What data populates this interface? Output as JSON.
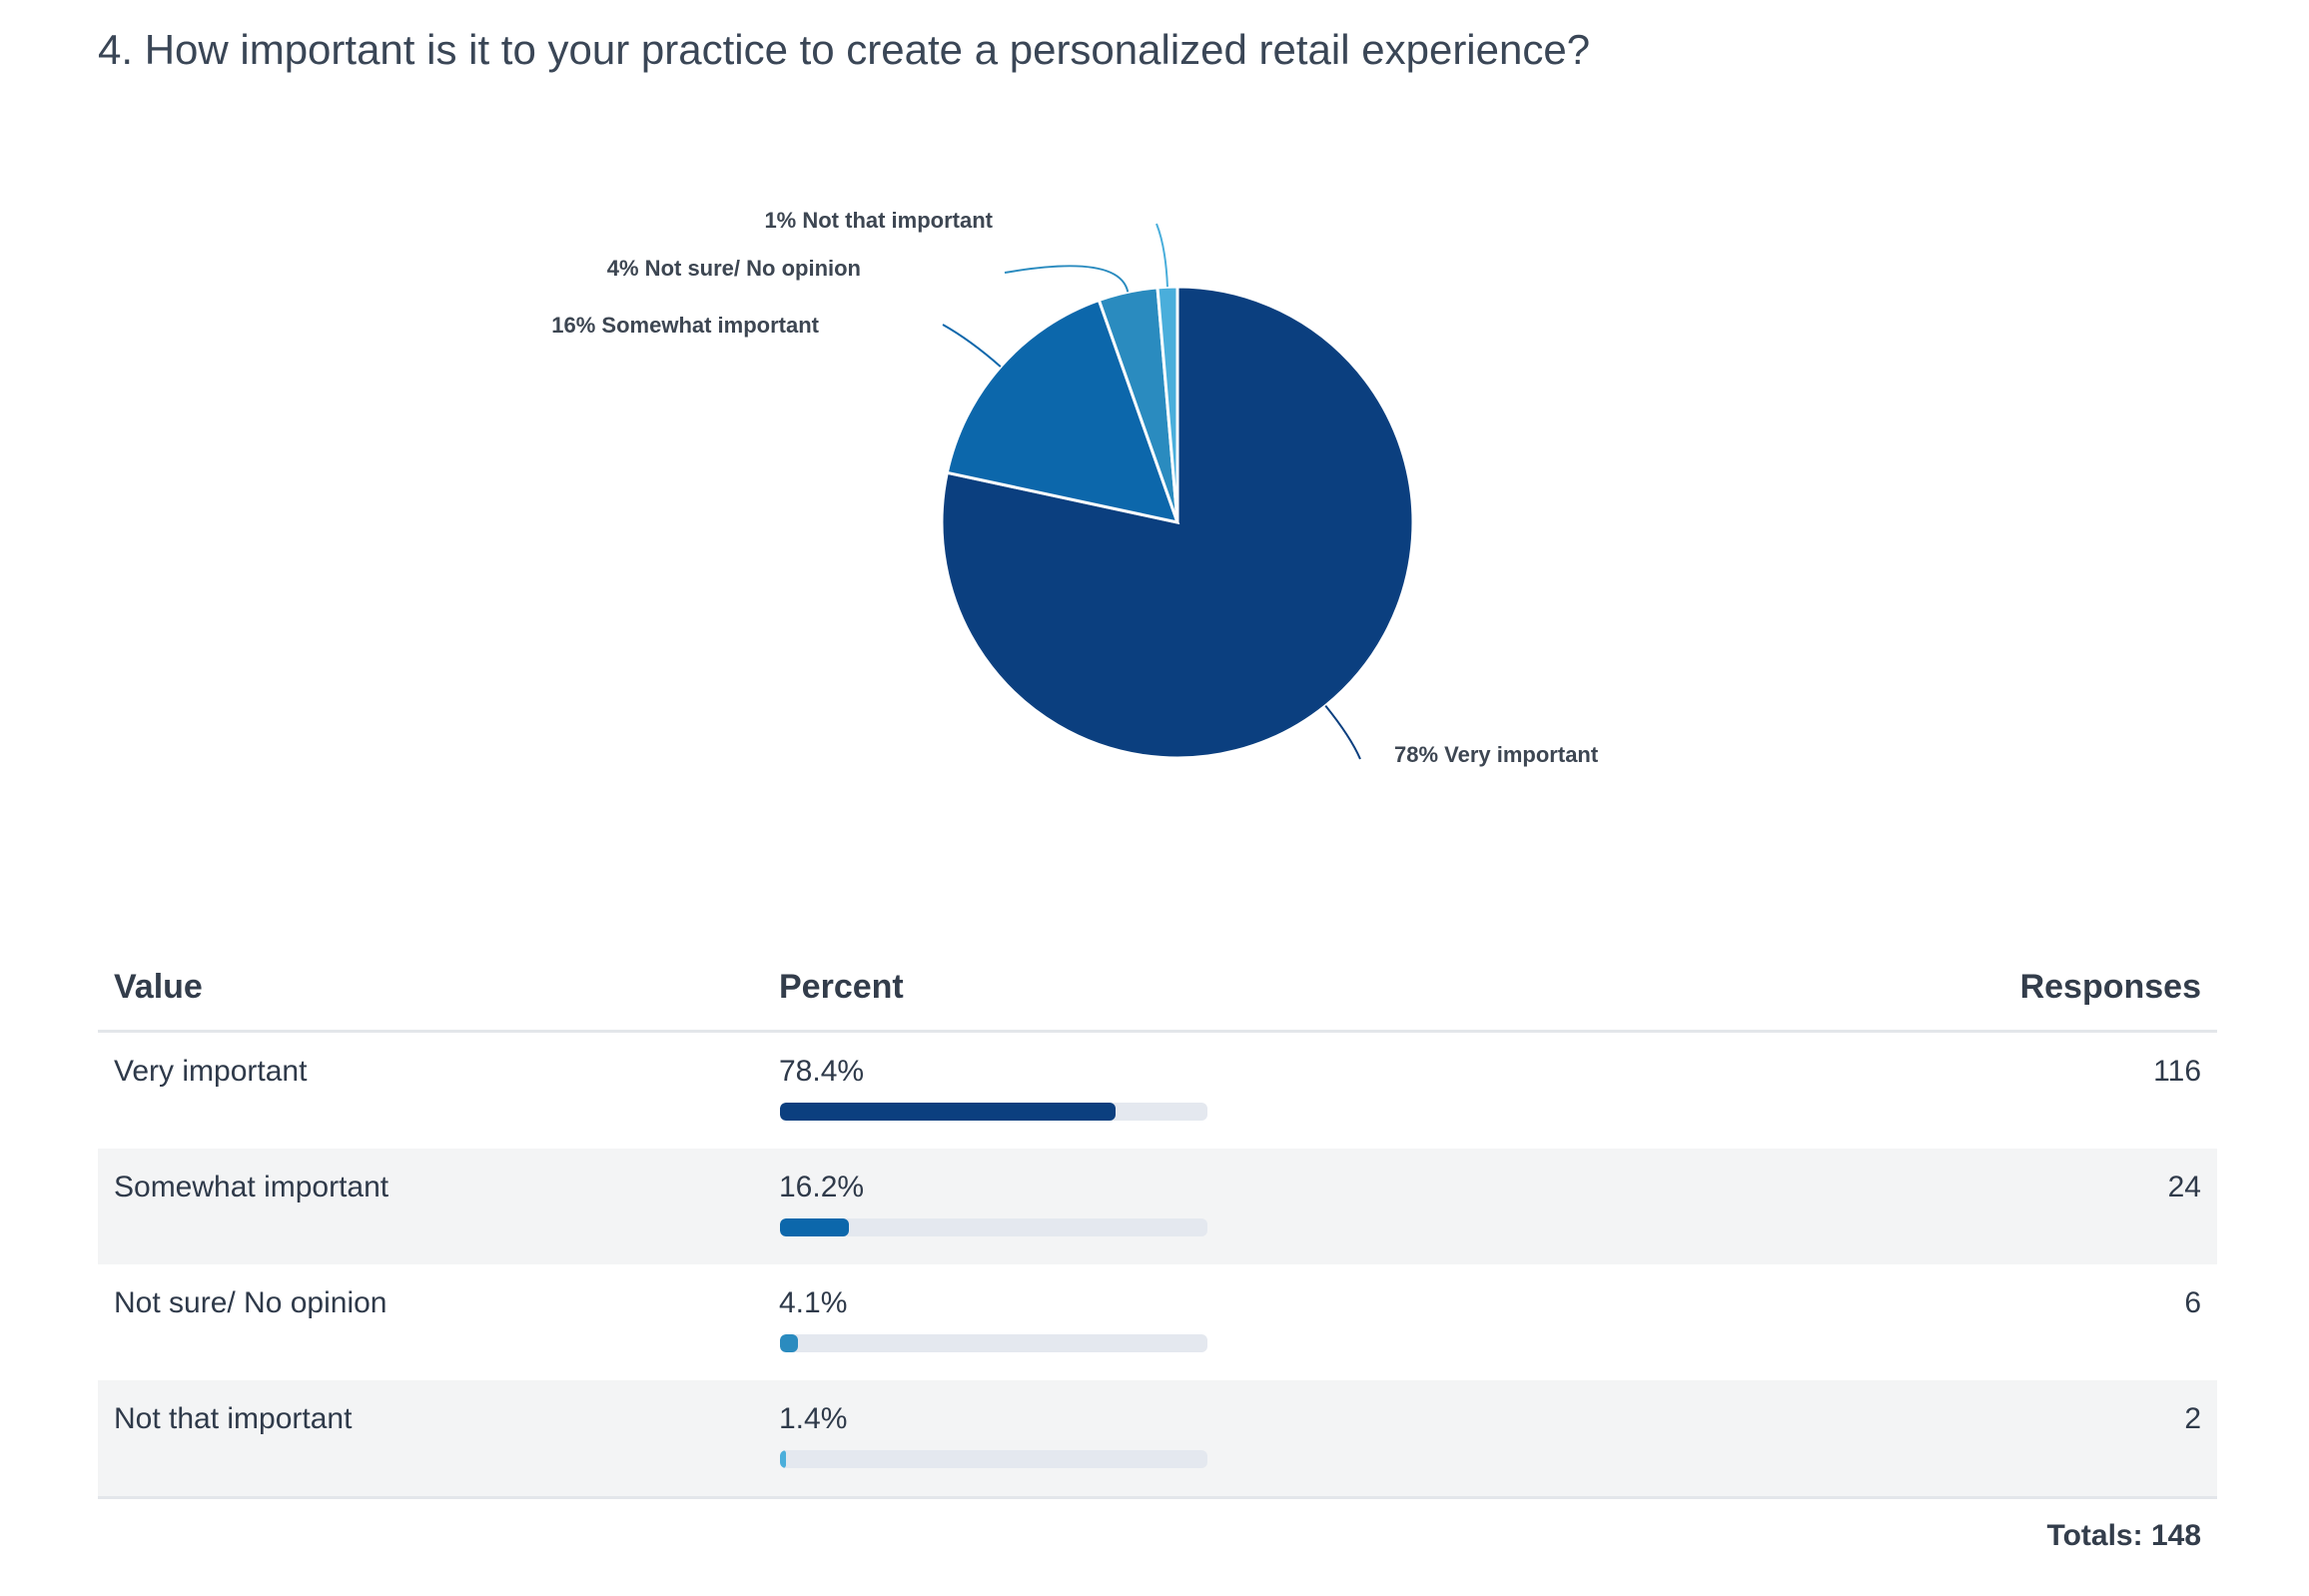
{
  "title": "4. How important is it to your practice to create a personalized retail experience?",
  "chart_data": {
    "type": "pie",
    "title": "4. How important is it to your practice to create a personalized retail experience?",
    "slices": [
      {
        "name": "Very important",
        "label": "78% Very important",
        "value": 116,
        "percent": 78.4,
        "color": "#0b3f7f"
      },
      {
        "name": "Somewhat important",
        "label": "16% Somewhat important",
        "value": 24,
        "percent": 16.2,
        "color": "#0c67ab"
      },
      {
        "name": "Not sure/ No opinion",
        "label": "4% Not sure/ No opinion",
        "value": 6,
        "percent": 4.1,
        "color": "#2a8bbf"
      },
      {
        "name": "Not that important",
        "label": "1% Not that important",
        "value": 2,
        "percent": 1.4,
        "color": "#4aaedb"
      }
    ]
  },
  "table": {
    "headers": {
      "value": "Value",
      "percent": "Percent",
      "responses": "Responses"
    },
    "rows": [
      {
        "value": "Very important",
        "percent_label": "78.4%",
        "percent": 78.4,
        "responses": "116",
        "color": "#0b3f7f"
      },
      {
        "value": "Somewhat important",
        "percent_label": "16.2%",
        "percent": 16.2,
        "responses": "24",
        "color": "#0c67ab"
      },
      {
        "value": "Not sure/ No opinion",
        "percent_label": "4.1%",
        "percent": 4.1,
        "responses": "6",
        "color": "#2a8bbf"
      },
      {
        "value": "Not that important",
        "percent_label": "1.4%",
        "percent": 1.4,
        "responses": "2",
        "color": "#4aaedb"
      }
    ],
    "totals": "Totals: 148"
  }
}
